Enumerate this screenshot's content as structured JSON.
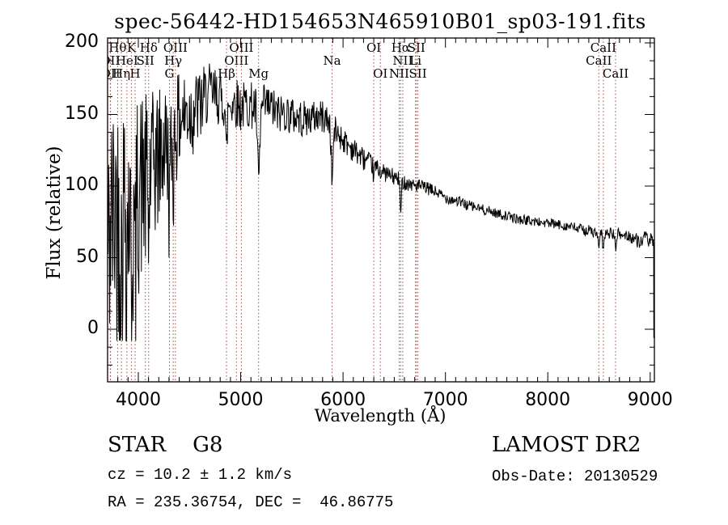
{
  "title": "spec-56442-HD154653N465910B01_sp03-191.fits",
  "annotations": {
    "class_label": "STAR    G8",
    "cz": "cz = 10.2 ± 1.2 km/s",
    "radec": "RA = 235.36754, DEC =  46.86775",
    "survey": "LAMOST DR2",
    "obs_date": "Obs-Date: 20130529"
  },
  "chart_data": {
    "type": "line",
    "title": "spec-56442-HD154653N465910B01_sp03-191.fits",
    "xlabel": "Wavelength (Å)",
    "ylabel": "Flux (relative)",
    "xlim": [
      3700,
      9041
    ],
    "ylim": [
      -36.7,
      203.4
    ],
    "xticks": [
      4000,
      5000,
      6000,
      7000,
      8000,
      9000
    ],
    "yticks": [
      0,
      50,
      100,
      150,
      200
    ],
    "x_minor_step": 100,
    "y_minor_step": 12.5,
    "grid": false,
    "legend": "none",
    "line_color": "#000000",
    "marker_line_color": "#9a4b45",
    "spectral_lines": [
      {
        "name": "OII",
        "wavelength": 3726.0,
        "row": 2
      },
      {
        "name": "OII",
        "wavelength": 3728.8,
        "row": 3
      },
      {
        "name": "Hθ",
        "wavelength": 3797.9,
        "row": 1
      },
      {
        "name": "Hη",
        "wavelength": 3835.4,
        "row": 3
      },
      {
        "name": "HeI",
        "wavelength": 3889.0,
        "row": 2
      },
      {
        "name": "K",
        "wavelength": 3933.7,
        "row": 1
      },
      {
        "name": "H",
        "wavelength": 3968.5,
        "row": 3
      },
      {
        "name": "SII",
        "wavelength": 4068.6,
        "row": 2
      },
      {
        "name": "Hδ",
        "wavelength": 4101.7,
        "row": 1
      },
      {
        "name": "G",
        "wavelength": 4304.4,
        "row": 3
      },
      {
        "name": "Hγ",
        "wavelength": 4340.5,
        "row": 2
      },
      {
        "name": "OIII",
        "wavelength": 4363.2,
        "row": 1
      },
      {
        "name": "Hβ",
        "wavelength": 4861.3,
        "row": 3
      },
      {
        "name": "OIII",
        "wavelength": 4958.9,
        "row": 2
      },
      {
        "name": "OIII",
        "wavelength": 5006.8,
        "row": 1
      },
      {
        "name": "Mg",
        "wavelength": 5175.3,
        "row": 3
      },
      {
        "name": "Na",
        "wavelength": 5893.0,
        "row": 2
      },
      {
        "name": "OI",
        "wavelength": 6300.3,
        "row": 1
      },
      {
        "name": "OI",
        "wavelength": 6363.8,
        "row": 3
      },
      {
        "name": "NII",
        "wavelength": 6548.0,
        "row": 3
      },
      {
        "name": "Hα",
        "wavelength": 6562.8,
        "row": 1
      },
      {
        "name": "NII",
        "wavelength": 6583.4,
        "row": 2
      },
      {
        "name": "Li",
        "wavelength": 6707.8,
        "row": 2
      },
      {
        "name": "SII",
        "wavelength": 6716.4,
        "row": 1
      },
      {
        "name": "SII",
        "wavelength": 6730.8,
        "row": 3
      },
      {
        "name": "CaII",
        "wavelength": 8498.0,
        "row": 2
      },
      {
        "name": "CaII",
        "wavelength": 8542.1,
        "row": 1
      },
      {
        "name": "CaII",
        "wavelength": 8662.1,
        "row": 3
      }
    ],
    "spectrum_envelope": {
      "x": [
        3700,
        3740,
        3780,
        3820,
        3860,
        3900,
        3940,
        3980,
        4020,
        4060,
        4100,
        4160,
        4220,
        4280,
        4340,
        4400,
        4460,
        4520,
        4580,
        4640,
        4700,
        4760,
        4820,
        4880,
        4940,
        5000,
        5060,
        5120,
        5180,
        5240,
        5300,
        5360,
        5420,
        5480,
        5540,
        5600,
        5660,
        5720,
        5780,
        5840,
        5900,
        5960,
        6020,
        6080,
        6140,
        6200,
        6260,
        6320,
        6380,
        6440,
        6500,
        6560,
        6620,
        6680,
        6740,
        6800,
        6900,
        7000,
        7100,
        7200,
        7300,
        7400,
        7500,
        7600,
        7700,
        7800,
        7900,
        8000,
        8100,
        8200,
        8300,
        8400,
        8500,
        8600,
        8700,
        8800,
        8900,
        8950,
        9000,
        9032
      ],
      "mean": [
        60,
        85,
        95,
        92,
        98,
        100,
        102,
        105,
        112,
        110,
        115,
        122,
        130,
        136,
        142,
        150,
        153,
        155,
        158,
        162,
        165,
        163,
        160,
        157,
        160,
        155,
        157,
        156,
        152,
        156,
        155,
        150,
        152,
        150,
        148,
        147,
        147,
        148,
        149,
        147,
        140,
        136,
        131,
        127,
        123,
        119,
        116,
        113,
        110,
        108,
        106,
        104,
        102,
        101,
        100,
        99,
        96,
        92,
        90,
        87,
        85,
        83,
        81,
        79,
        77,
        76,
        75,
        74,
        73,
        72,
        70,
        69,
        66,
        67,
        66,
        65,
        61,
        64,
        62,
        60
      ],
      "noise": [
        68,
        72,
        70,
        71,
        69,
        67,
        64,
        60,
        57,
        54,
        50,
        45,
        40,
        36,
        32,
        29,
        27,
        25,
        23,
        22,
        21,
        20,
        19,
        19,
        18,
        18,
        17,
        17,
        16,
        16,
        15,
        15,
        14,
        14,
        13,
        13,
        12,
        12,
        12,
        11,
        11,
        10,
        9,
        9,
        8,
        8,
        7,
        7,
        6,
        6,
        6,
        5.5,
        5,
        5,
        5,
        4.5,
        4.5,
        4,
        4,
        4,
        3.5,
        3.5,
        3.5,
        3.5,
        3.5,
        3.5,
        3.5,
        3.5,
        3.5,
        3.5,
        4,
        4,
        4,
        4,
        4.5,
        4.5,
        5,
        5,
        5.5,
        4
      ]
    },
    "absorption_dips": [
      {
        "wavelength": 3835,
        "depth": 40,
        "sigma": 7
      },
      {
        "wavelength": 3889,
        "depth": 35,
        "sigma": 7
      },
      {
        "wavelength": 3933,
        "depth": 55,
        "sigma": 9
      },
      {
        "wavelength": 3968,
        "depth": 55,
        "sigma": 9
      },
      {
        "wavelength": 4101,
        "depth": 45,
        "sigma": 7
      },
      {
        "wavelength": 4304,
        "depth": 40,
        "sigma": 10
      },
      {
        "wavelength": 4340,
        "depth": 35,
        "sigma": 7
      },
      {
        "wavelength": 4861,
        "depth": 38,
        "sigma": 7
      },
      {
        "wavelength": 5175,
        "depth": 50,
        "sigma": 11
      },
      {
        "wavelength": 5893,
        "depth": 36,
        "sigma": 9
      },
      {
        "wavelength": 6300,
        "depth": 8,
        "sigma": 5
      },
      {
        "wavelength": 6563,
        "depth": 24,
        "sigma": 6
      },
      {
        "wavelength": 8498,
        "depth": 11,
        "sigma": 6
      },
      {
        "wavelength": 8542,
        "depth": 13,
        "sigma": 6
      },
      {
        "wavelength": 8662,
        "depth": 11,
        "sigma": 6
      }
    ],
    "edge_drop": [
      [
        9034,
        57
      ],
      [
        9035.5,
        -6
      ]
    ],
    "sample_step": 5,
    "seed": 42
  }
}
